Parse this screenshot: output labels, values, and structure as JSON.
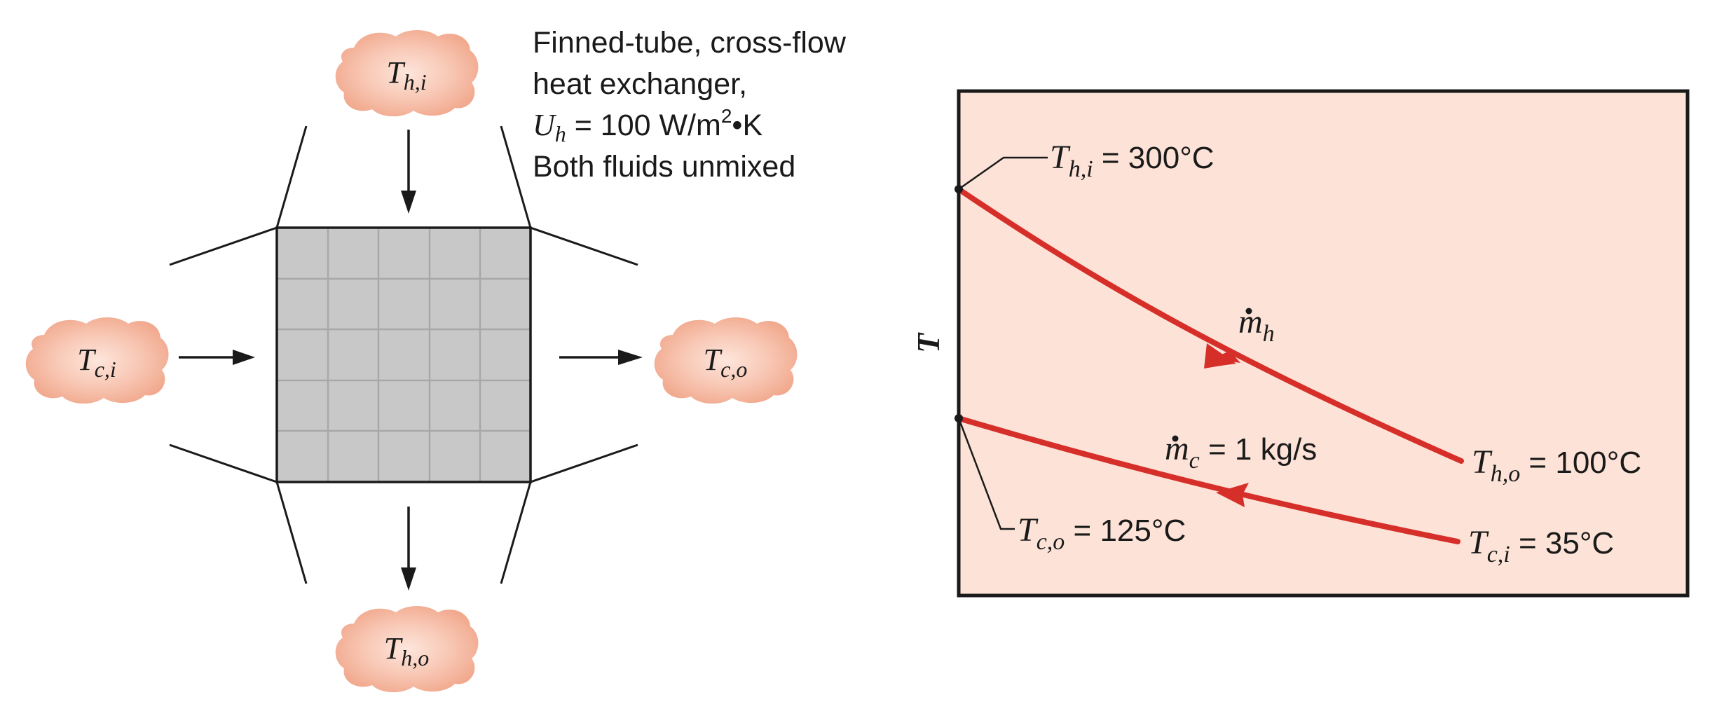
{
  "colors": {
    "plot_background": "#fde3d7",
    "curve": "#d62f2a",
    "core_fill": "#c8c8c8",
    "core_grid": "#a8a8a8",
    "cloud_fill": "#f1a98e",
    "cloud_center": "#fde6dc",
    "ink": "#1a1a1a"
  },
  "spec": {
    "line1": "Finned-tube, cross-flow",
    "line2": "heat exchanger,",
    "uh_symbol": "U",
    "uh_subscript": "h",
    "uh_value": " = 100 W/m",
    "uh_exponent": "2",
    "uh_bullet": "•",
    "uh_unit_tail": "K",
    "line4": "Both fluids unmixed"
  },
  "clouds": {
    "hot_in": {
      "symbol": "T",
      "subscript": "h,i"
    },
    "hot_out": {
      "symbol": "T",
      "subscript": "h,o"
    },
    "cold_in": {
      "symbol": "T",
      "subscript": "c,i"
    },
    "cold_out": {
      "symbol": "T",
      "subscript": "c,o"
    }
  },
  "profile": {
    "y_axis_label": "T",
    "hot_inlet": {
      "symbol": "T",
      "subscript": "h,i",
      "text": " = 300°C"
    },
    "hot_outlet": {
      "symbol": "T",
      "subscript": "h,o",
      "text": " = 100°C"
    },
    "cold_inlet": {
      "symbol": "T",
      "subscript": "c,i",
      "text": " = 35°C"
    },
    "cold_outlet": {
      "symbol": "T",
      "subscript": "c,o",
      "text": " = 125°C"
    },
    "hot_flow": {
      "symbol": "m",
      "subscript": "h",
      "text": ""
    },
    "cold_flow": {
      "symbol": "m",
      "subscript": "c",
      "text": " = 1 kg/s"
    },
    "values_c": {
      "hot_in": 300,
      "hot_out": 100,
      "cold_in": 35,
      "cold_out": 125
    }
  }
}
